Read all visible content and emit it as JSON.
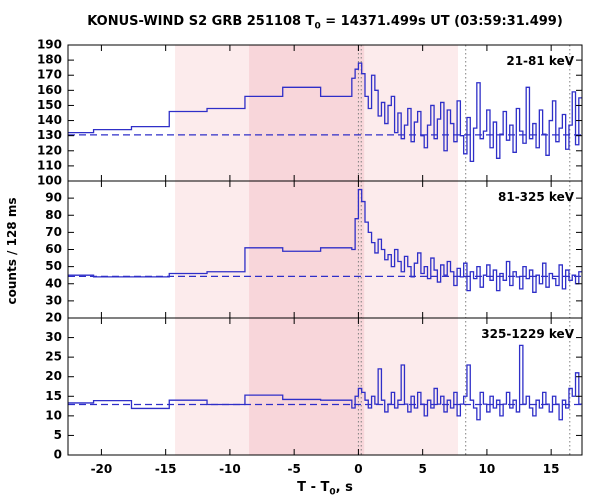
{
  "title": {
    "pre": "KONUS-WIND S2 GRB 251108 T",
    "sub": "0",
    "post": " = 14371.499s UT (03:59:31.499)"
  },
  "xlabel": {
    "pre": "T - T",
    "sub": "0",
    "post": ", s"
  },
  "ylabel": "counts / 128 ms",
  "colors": {
    "curve": "#2f2fc8",
    "background_level": "#2f2fc8",
    "shade_light": "#fcebec",
    "shade_dark": "#f8d6da",
    "vline": "#808080",
    "axis": "#000000"
  },
  "chart_data": {
    "type": "line",
    "style": "step-histogram",
    "x_axis": {
      "min": -22.6,
      "max": 17.4,
      "ticks": [
        -20,
        -15,
        -10,
        -5,
        0,
        5,
        10,
        15
      ]
    },
    "shaded_intervals": [
      {
        "x0": -14.27,
        "x1": 7.75,
        "shade": "light"
      },
      {
        "x0": -8.51,
        "x1": 0.45,
        "shade": "dark"
      }
    ],
    "vlines": [
      0.0,
      0.22,
      8.35,
      16.45
    ],
    "coarse_bin_edges": [
      -22.6,
      -20.61,
      -17.66,
      -14.72,
      -11.78,
      -8.83,
      -5.89,
      -2.94,
      -0.512
    ],
    "fine": {
      "t0": -0.512,
      "dt": 0.256
    },
    "panels": [
      {
        "label": "21-81 keV",
        "y_min": 100,
        "y_max": 190,
        "y_ticks": [
          {
            "v": 100,
            "l": ""
          },
          {
            "v": 110,
            "l": "110"
          },
          {
            "v": 120,
            "l": "120"
          },
          {
            "v": 130,
            "l": "130"
          },
          {
            "v": 140,
            "l": "140"
          },
          {
            "v": 150,
            "l": "150"
          },
          {
            "v": 160,
            "l": "160"
          },
          {
            "v": 170,
            "l": "170"
          },
          {
            "v": 180,
            "l": "180"
          },
          {
            "v": 190,
            "l": "190"
          }
        ],
        "background_level": 130.5,
        "coarse_values": [
          132,
          134,
          136,
          146,
          148,
          156,
          162,
          156
        ],
        "fine_values": [
          168,
          174,
          178,
          171,
          156,
          148,
          170,
          160,
          143,
          152,
          138,
          150,
          156,
          132,
          145,
          128,
          137,
          148,
          126,
          139,
          146,
          130,
          122,
          137,
          150,
          128,
          141,
          152,
          120,
          147,
          138,
          126,
          153,
          130,
          118,
          142,
          113,
          135,
          165,
          128,
          133,
          147,
          122,
          139,
          115,
          131,
          146,
          127,
          137,
          119,
          148,
          133,
          125,
          162,
          128,
          138,
          122,
          147,
          131,
          117,
          140,
          153,
          126,
          135,
          144,
          121,
          137,
          159,
          124,
          155
        ]
      },
      {
        "label": "81-325 keV",
        "y_min": 20,
        "y_max": 100,
        "y_ticks": [
          {
            "v": 20,
            "l": "20"
          },
          {
            "v": 30,
            "l": "30"
          },
          {
            "v": 40,
            "l": "40"
          },
          {
            "v": 50,
            "l": "50"
          },
          {
            "v": 60,
            "l": "60"
          },
          {
            "v": 70,
            "l": "70"
          },
          {
            "v": 80,
            "l": "80"
          },
          {
            "v": 90,
            "l": "90"
          },
          {
            "v": 100,
            "l": "100"
          }
        ],
        "background_level": 44.3,
        "coarse_values": [
          45,
          44,
          44,
          46,
          47,
          61,
          59,
          61
        ],
        "fine_values": [
          60,
          78,
          95,
          88,
          76,
          70,
          64,
          58,
          66,
          60,
          54,
          57,
          50,
          60,
          53,
          47,
          56,
          50,
          44,
          52,
          58,
          46,
          50,
          43,
          55,
          48,
          41,
          51,
          45,
          53,
          47,
          39,
          49,
          44,
          52,
          36,
          47,
          43,
          50,
          38,
          45,
          51,
          42,
          48,
          36,
          46,
          42,
          53,
          39,
          47,
          44,
          37,
          50,
          43,
          48,
          35,
          45,
          40,
          52,
          38,
          46,
          43,
          39,
          51,
          37,
          48,
          42,
          45,
          40,
          47
        ]
      },
      {
        "label": "325-1229 keV",
        "y_min": 0,
        "y_max": 35,
        "y_ticks": [
          {
            "v": 0,
            "l": "0"
          },
          {
            "v": 5,
            "l": "5"
          },
          {
            "v": 10,
            "l": "10"
          },
          {
            "v": 15,
            "l": "15"
          },
          {
            "v": 20,
            "l": "20"
          },
          {
            "v": 25,
            "l": "25"
          },
          {
            "v": 30,
            "l": "30"
          }
        ],
        "background_level": 12.9,
        "coarse_values": [
          13.3,
          13.9,
          11.9,
          14.0,
          12.9,
          15.3,
          14.2,
          14.0
        ],
        "fine_values": [
          12,
          15,
          17,
          16,
          14,
          12,
          15,
          13,
          22,
          14,
          11,
          13,
          16,
          12,
          14,
          23,
          13,
          11,
          15,
          12,
          16,
          13,
          10,
          14,
          12,
          17,
          13,
          15,
          11,
          14,
          12,
          16,
          10,
          13,
          15,
          23,
          14,
          12,
          9,
          16,
          13,
          11,
          15,
          12,
          14,
          10,
          13,
          16,
          12,
          14,
          11,
          28,
          13,
          15,
          12,
          10,
          14,
          12,
          16,
          13,
          11,
          15,
          13,
          9,
          14,
          12,
          17,
          15,
          21,
          13
        ]
      }
    ]
  }
}
